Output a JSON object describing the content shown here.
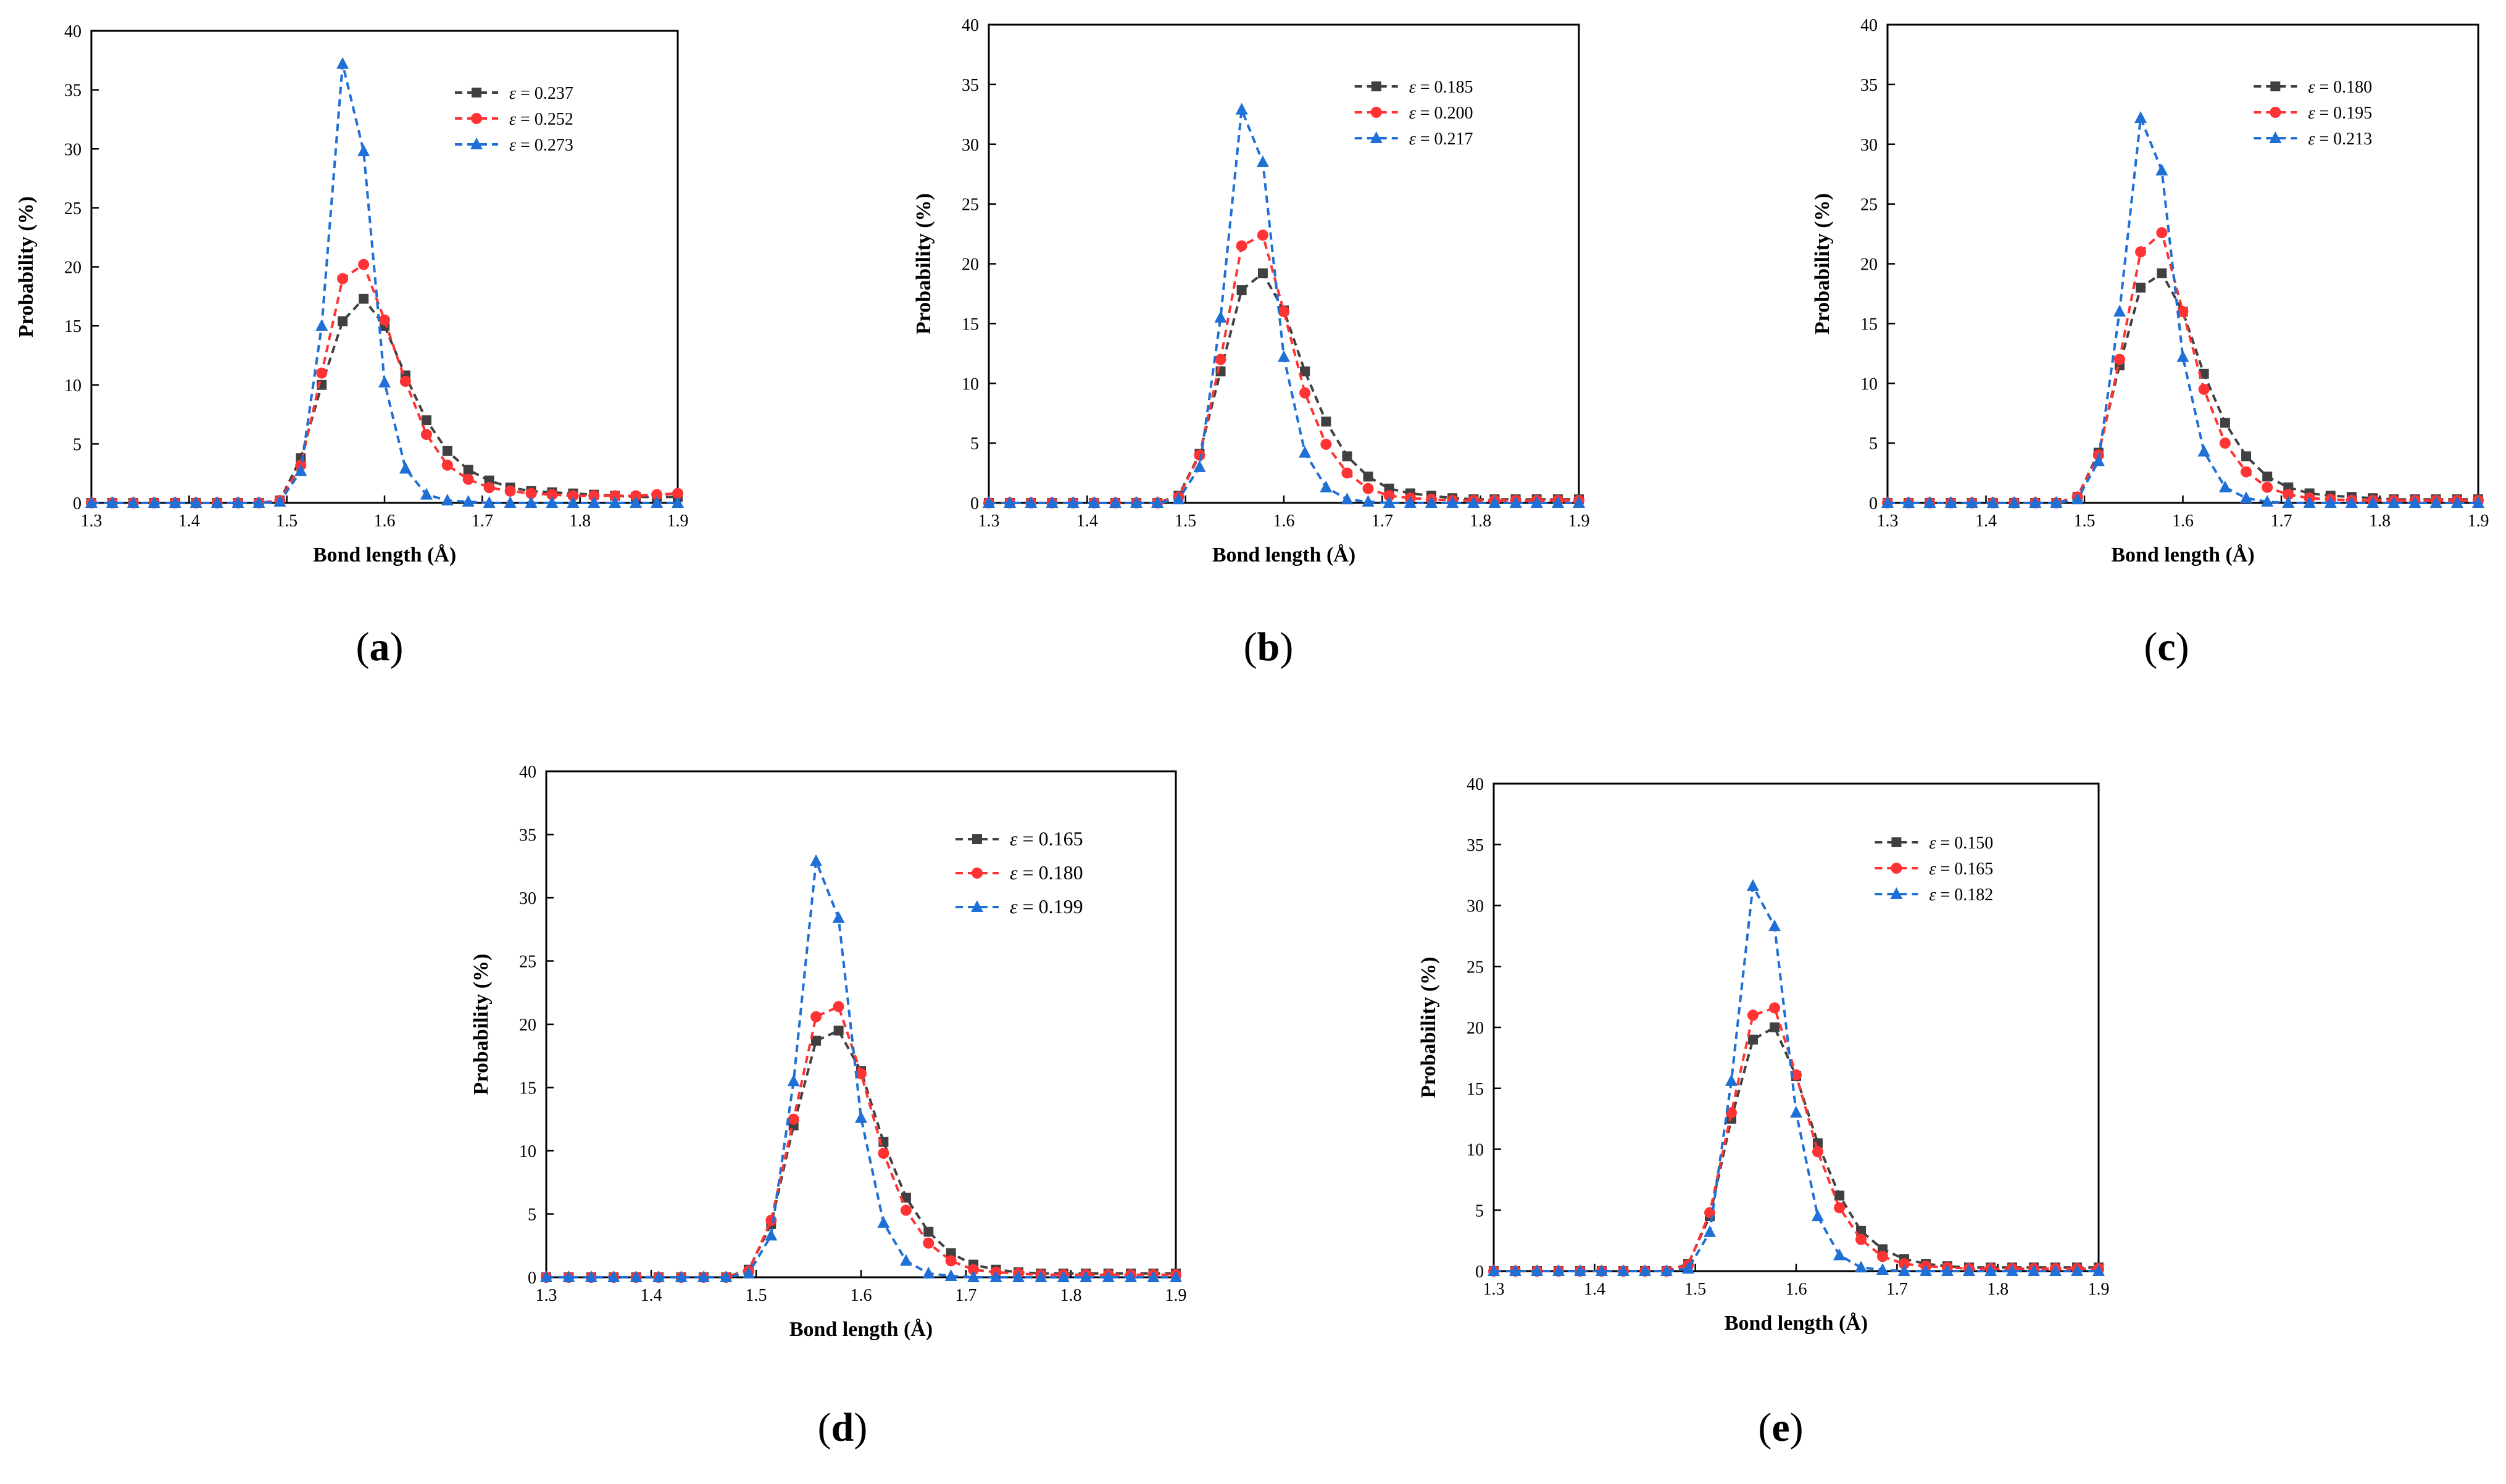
{
  "figure": {
    "chart_data": [
      {
        "id": "a",
        "panel_label": "(a)",
        "panel_letter": "a",
        "type": "line",
        "xlabel": "Bond length (Å)",
        "ylabel": "Probability (%)",
        "xlim": [
          1.3,
          1.9
        ],
        "ylim": [
          0,
          40
        ],
        "x_ticks": [
          "1.3",
          "1.4",
          "1.5",
          "1.6",
          "1.7",
          "1.8",
          "1.9"
        ],
        "y_ticks": [
          "0",
          "5",
          "10",
          "15",
          "20",
          "25",
          "30",
          "35",
          "40"
        ],
        "legend_position": "top-right",
        "x": [
          1.3,
          1.3214,
          1.3429,
          1.3643,
          1.3857,
          1.4071,
          1.4286,
          1.45,
          1.4714,
          1.4929,
          1.5143,
          1.5357,
          1.5571,
          1.5786,
          1.6,
          1.6214,
          1.6429,
          1.6643,
          1.6857,
          1.7071,
          1.7286,
          1.75,
          1.7714,
          1.7929,
          1.8143,
          1.8357,
          1.8571,
          1.8786,
          1.9
        ],
        "series": [
          {
            "name": "0.237",
            "legend_text": "= 0.237",
            "color": "#404040",
            "marker": "square",
            "values": [
              0,
              0,
              0,
              0,
              0,
              0,
              0,
              0,
              0,
              0.2,
              3.8,
              10,
              15.4,
              17.3,
              15,
              10.8,
              7,
              4.4,
              2.8,
              1.9,
              1.3,
              1,
              0.9,
              0.8,
              0.7,
              0.6,
              0.5,
              0.5,
              0.5
            ]
          },
          {
            "name": "0.252",
            "legend_text": "= 0.252",
            "color": "#ff3333",
            "marker": "circle",
            "values": [
              0,
              0,
              0,
              0,
              0,
              0,
              0,
              0,
              0,
              0.2,
              3.2,
              11,
              19,
              20.2,
              15.5,
              10.3,
              5.8,
              3.2,
              2,
              1.3,
              1,
              0.8,
              0.7,
              0.6,
              0.6,
              0.6,
              0.6,
              0.7,
              0.8
            ]
          },
          {
            "name": "0.273",
            "legend_text": "= 0.273",
            "color": "#1e6fd6",
            "marker": "triangle",
            "values": [
              0,
              0,
              0,
              0,
              0,
              0,
              0,
              0,
              0,
              0.1,
              2.7,
              15,
              37.2,
              29.8,
              10.2,
              2.9,
              0.7,
              0.2,
              0.1,
              0,
              0,
              0,
              0,
              0,
              0,
              0,
              0,
              0,
              0
            ]
          }
        ]
      },
      {
        "id": "b",
        "panel_label": "(b)",
        "panel_letter": "b",
        "type": "line",
        "xlabel": "Bond length (Å)",
        "ylabel": "Probability (%)",
        "xlim": [
          1.3,
          1.9
        ],
        "ylim": [
          0,
          40
        ],
        "x_ticks": [
          "1.3",
          "1.4",
          "1.5",
          "1.6",
          "1.7",
          "1.8",
          "1.9"
        ],
        "y_ticks": [
          "0",
          "5",
          "10",
          "15",
          "20",
          "25",
          "30",
          "35",
          "40"
        ],
        "legend_position": "top-right",
        "x": [
          1.3,
          1.3214,
          1.3429,
          1.3643,
          1.3857,
          1.4071,
          1.4286,
          1.45,
          1.4714,
          1.4929,
          1.5143,
          1.5357,
          1.5571,
          1.5786,
          1.6,
          1.6214,
          1.6429,
          1.6643,
          1.6857,
          1.7071,
          1.7286,
          1.75,
          1.7714,
          1.7929,
          1.8143,
          1.8357,
          1.8571,
          1.8786,
          1.9
        ],
        "series": [
          {
            "name": "0.185",
            "legend_text": "= 0.185",
            "color": "#404040",
            "marker": "square",
            "values": [
              0,
              0,
              0,
              0,
              0,
              0,
              0,
              0,
              0,
              0.6,
              4.1,
              11,
              17.8,
              19.2,
              16.1,
              11,
              6.8,
              3.9,
              2.2,
              1.2,
              0.8,
              0.6,
              0.4,
              0.3,
              0.3,
              0.3,
              0.3,
              0.3,
              0.3
            ]
          },
          {
            "name": "0.200",
            "legend_text": "= 0.200",
            "color": "#ff3333",
            "marker": "circle",
            "values": [
              0,
              0,
              0,
              0,
              0,
              0,
              0,
              0,
              0,
              0.5,
              4,
              12,
              21.5,
              22.4,
              16,
              9.2,
              4.9,
              2.5,
              1.2,
              0.6,
              0.4,
              0.3,
              0.2,
              0.2,
              0.2,
              0.2,
              0.2,
              0.2,
              0.2
            ]
          },
          {
            "name": "0.217",
            "legend_text": "= 0.217",
            "color": "#1e6fd6",
            "marker": "triangle",
            "values": [
              0,
              0,
              0,
              0,
              0,
              0,
              0,
              0,
              0,
              0.3,
              3,
              15.5,
              32.9,
              28.5,
              12.2,
              4.2,
              1.3,
              0.3,
              0.1,
              0,
              0,
              0,
              0,
              0,
              0,
              0,
              0,
              0,
              0
            ]
          }
        ]
      },
      {
        "id": "c",
        "panel_label": "(c)",
        "panel_letter": "c",
        "type": "line",
        "xlabel": "Bond length (Å)",
        "ylabel": "Probability (%)",
        "xlim": [
          1.3,
          1.9
        ],
        "ylim": [
          0,
          40
        ],
        "x_ticks": [
          "1.3",
          "1.4",
          "1.5",
          "1.6",
          "1.7",
          "1.8",
          "1.9"
        ],
        "y_ticks": [
          "0",
          "5",
          "10",
          "15",
          "20",
          "25",
          "30",
          "35",
          "40"
        ],
        "legend_position": "top-right",
        "x": [
          1.3,
          1.3214,
          1.3429,
          1.3643,
          1.3857,
          1.4071,
          1.4286,
          1.45,
          1.4714,
          1.4929,
          1.5143,
          1.5357,
          1.5571,
          1.5786,
          1.6,
          1.6214,
          1.6429,
          1.6643,
          1.6857,
          1.7071,
          1.7286,
          1.75,
          1.7714,
          1.7929,
          1.8143,
          1.8357,
          1.8571,
          1.8786,
          1.9
        ],
        "series": [
          {
            "name": "0.180",
            "legend_text": "= 0.180",
            "color": "#404040",
            "marker": "square",
            "values": [
              0,
              0,
              0,
              0,
              0,
              0,
              0,
              0,
              0,
              0.5,
              4.2,
              11.5,
              18,
              19.2,
              16,
              10.8,
              6.7,
              3.9,
              2.2,
              1.3,
              0.8,
              0.6,
              0.5,
              0.4,
              0.3,
              0.3,
              0.3,
              0.3,
              0.3
            ]
          },
          {
            "name": "0.195",
            "legend_text": "= 0.195",
            "color": "#ff3333",
            "marker": "circle",
            "values": [
              0,
              0,
              0,
              0,
              0,
              0,
              0,
              0,
              0,
              0.5,
              4,
              12,
              21,
              22.6,
              16,
              9.5,
              5,
              2.6,
              1.3,
              0.7,
              0.4,
              0.3,
              0.2,
              0.2,
              0.2,
              0.2,
              0.2,
              0.2,
              0.2
            ]
          },
          {
            "name": "0.213",
            "legend_text": "= 0.213",
            "color": "#1e6fd6",
            "marker": "triangle",
            "values": [
              0,
              0,
              0,
              0,
              0,
              0,
              0,
              0,
              0,
              0.3,
              3.5,
              16,
              32.2,
              27.8,
              12.2,
              4.3,
              1.3,
              0.4,
              0.1,
              0,
              0,
              0,
              0,
              0,
              0,
              0,
              0,
              0,
              0
            ]
          }
        ]
      },
      {
        "id": "d",
        "panel_label": "(d)",
        "panel_letter": "d",
        "type": "line",
        "xlabel": "Bond length (Å)",
        "ylabel": "Probability (%)",
        "xlim": [
          1.3,
          1.9
        ],
        "ylim": [
          0,
          40
        ],
        "x_ticks": [
          "1.3",
          "1.4",
          "1.5",
          "1.6",
          "1.7",
          "1.8",
          "1.9"
        ],
        "y_ticks": [
          "0",
          "5",
          "10",
          "15",
          "20",
          "25",
          "30",
          "35",
          "40"
        ],
        "legend_position": "top-right",
        "x": [
          1.3,
          1.3214,
          1.3429,
          1.3643,
          1.3857,
          1.4071,
          1.4286,
          1.45,
          1.4714,
          1.4929,
          1.5143,
          1.5357,
          1.5571,
          1.5786,
          1.6,
          1.6214,
          1.6429,
          1.6643,
          1.6857,
          1.7071,
          1.7286,
          1.75,
          1.7714,
          1.7929,
          1.8143,
          1.8357,
          1.8571,
          1.8786,
          1.9
        ],
        "series": [
          {
            "name": "0.165",
            "legend_text": "= 0.165",
            "color": "#404040",
            "marker": "square",
            "values": [
              0,
              0,
              0,
              0,
              0,
              0,
              0,
              0,
              0,
              0.6,
              4.2,
              12,
              18.7,
              19.5,
              16.3,
              10.7,
              6.3,
              3.6,
              1.9,
              1,
              0.6,
              0.4,
              0.3,
              0.3,
              0.3,
              0.3,
              0.3,
              0.3,
              0.3
            ]
          },
          {
            "name": "0.180",
            "legend_text": "= 0.180",
            "color": "#ff3333",
            "marker": "circle",
            "values": [
              0,
              0,
              0,
              0,
              0,
              0,
              0,
              0,
              0,
              0.5,
              4.5,
              12.5,
              20.6,
              21.4,
              16.1,
              9.8,
              5.3,
              2.7,
              1.3,
              0.6,
              0.4,
              0.3,
              0.2,
              0.2,
              0.2,
              0.2,
              0.2,
              0.2,
              0.2
            ]
          },
          {
            "name": "0.199",
            "legend_text": "= 0.199",
            "color": "#1e6fd6",
            "marker": "triangle",
            "values": [
              0,
              0,
              0,
              0,
              0,
              0,
              0,
              0,
              0,
              0.3,
              3.3,
              15.5,
              32.9,
              28.4,
              12.6,
              4.3,
              1.3,
              0.3,
              0.1,
              0,
              0,
              0,
              0,
              0,
              0,
              0,
              0,
              0,
              0
            ]
          }
        ]
      },
      {
        "id": "e",
        "panel_label": "(e)",
        "panel_letter": "e",
        "type": "line",
        "xlabel": "Bond length (Å)",
        "ylabel": "Probability (%)",
        "xlim": [
          1.3,
          1.9
        ],
        "ylim": [
          0,
          40
        ],
        "x_ticks": [
          "1.3",
          "1.4",
          "1.5",
          "1.6",
          "1.7",
          "1.8",
          "1.9"
        ],
        "y_ticks": [
          "0",
          "5",
          "10",
          "15",
          "20",
          "25",
          "30",
          "35",
          "40"
        ],
        "legend_position": "top-left",
        "x": [
          1.3,
          1.3214,
          1.3429,
          1.3643,
          1.3857,
          1.4071,
          1.4286,
          1.45,
          1.4714,
          1.4929,
          1.5143,
          1.5357,
          1.5571,
          1.5786,
          1.6,
          1.6214,
          1.6429,
          1.6643,
          1.6857,
          1.7071,
          1.7286,
          1.75,
          1.7714,
          1.7929,
          1.8143,
          1.8357,
          1.8571,
          1.8786,
          1.9
        ],
        "series": [
          {
            "name": "0.150",
            "legend_text": "= 0.150",
            "color": "#404040",
            "marker": "square",
            "values": [
              0,
              0,
              0,
              0,
              0,
              0,
              0,
              0,
              0,
              0.6,
              4.5,
              12.5,
              19,
              20,
              16,
              10.5,
              6.2,
              3.3,
              1.8,
              1,
              0.6,
              0.4,
              0.3,
              0.3,
              0.3,
              0.3,
              0.3,
              0.3,
              0.3
            ]
          },
          {
            "name": "0.165",
            "legend_text": "= 0.165",
            "color": "#ff3333",
            "marker": "circle",
            "values": [
              0,
              0,
              0,
              0,
              0,
              0,
              0,
              0,
              0,
              0.5,
              4.8,
              13,
              21,
              21.6,
              16.1,
              9.8,
              5.2,
              2.6,
              1.2,
              0.6,
              0.4,
              0.3,
              0.2,
              0.2,
              0.2,
              0.2,
              0.2,
              0.2,
              0.2
            ]
          },
          {
            "name": "0.182",
            "legend_text": "= 0.182",
            "color": "#1e6fd6",
            "marker": "triangle",
            "values": [
              0,
              0,
              0,
              0,
              0,
              0,
              0,
              0,
              0,
              0.2,
              3.2,
              15.6,
              31.6,
              28.3,
              13,
              4.5,
              1.3,
              0.3,
              0.1,
              0,
              0,
              0,
              0,
              0,
              0,
              0,
              0,
              0,
              0
            ]
          }
        ]
      }
    ]
  }
}
